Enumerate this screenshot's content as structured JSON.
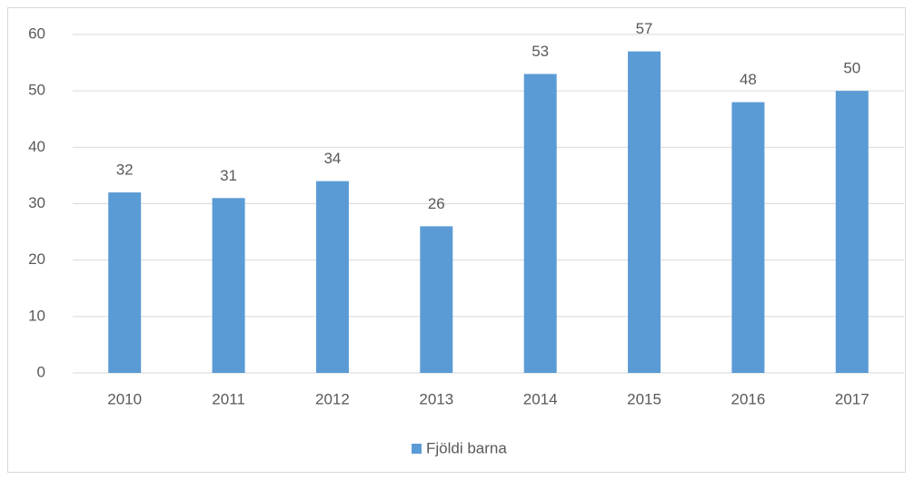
{
  "chart_data": {
    "type": "bar",
    "categories": [
      "2010",
      "2011",
      "2012",
      "2013",
      "2014",
      "2015",
      "2016",
      "2017"
    ],
    "series": [
      {
        "name": "Fjöldi barna",
        "color": "#5b9bd5",
        "values": [
          32,
          31,
          34,
          26,
          53,
          57,
          48,
          50
        ]
      }
    ],
    "ylim": [
      0,
      60
    ],
    "yticks": [
      0,
      10,
      20,
      30,
      40,
      50,
      60
    ],
    "grid": true,
    "legend": "bottom"
  }
}
